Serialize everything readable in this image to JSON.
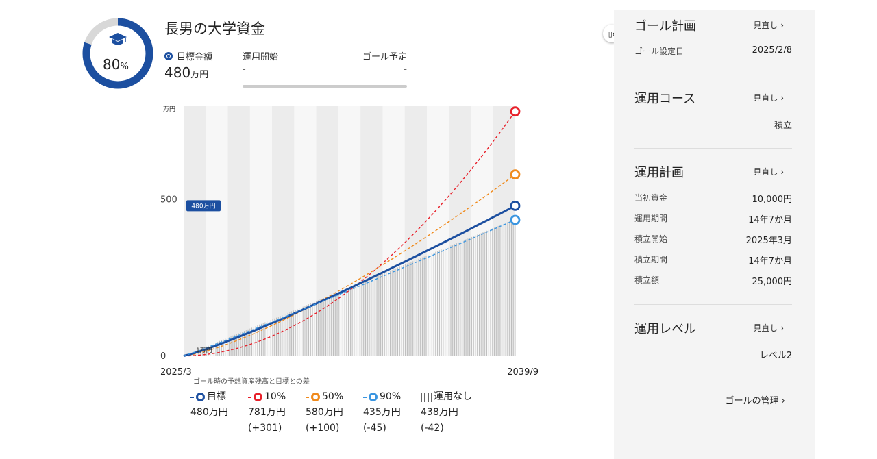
{
  "header": {
    "progress_percent": "80",
    "progress_unit": "%",
    "progress_fraction": 0.8,
    "goal_title": "長男の大学資金",
    "target_label": "目標金額",
    "target_value": "480",
    "target_unit": "万円",
    "start_label": "運用開始",
    "start_value": "-",
    "goal_date_label": "ゴール予定",
    "goal_date_value": "-"
  },
  "chart_data": {
    "type": "line",
    "y_unit": "万円",
    "x_start": "2025/3",
    "x_end": "2039/9",
    "ylim": [
      0,
      800
    ],
    "y_ticks": [
      "0",
      "500"
    ],
    "target_line_label": "480万円",
    "start_label": "1万円",
    "caption": "ゴール時の予想資産残高と目標との差",
    "series": [
      {
        "name": "10%",
        "end_value": 781,
        "diff": "(+301)",
        "color": "#e8202a",
        "style": "dashed",
        "curve": 1.9
      },
      {
        "name": "50%",
        "end_value": 580,
        "diff": "(+100)",
        "color": "#f08a1c",
        "style": "dashed",
        "curve": 1.35
      },
      {
        "name": "目標",
        "end_value": 480,
        "diff": "",
        "color": "#1c4fa0",
        "style": "solid",
        "curve": 1.15
      },
      {
        "name": "90%",
        "end_value": 435,
        "diff": "(-45)",
        "color": "#3a95e0",
        "style": "dashed",
        "curve": 1.05
      }
    ],
    "no_investment": {
      "name": "運用なし",
      "end_value": 438,
      "diff": "(-42)"
    },
    "legend": [
      {
        "key": "target",
        "label": "目標",
        "value": "480万円",
        "diff": "",
        "color": "#1c4fa0"
      },
      {
        "key": "p10",
        "label": "10%",
        "value": "781万円",
        "diff": "(+301)",
        "color": "#e8202a"
      },
      {
        "key": "p50",
        "label": "50%",
        "value": "580万円",
        "diff": "(+100)",
        "color": "#f08a1c"
      },
      {
        "key": "p90",
        "label": "90%",
        "value": "435万円",
        "diff": "(-45)",
        "color": "#3a95e0"
      },
      {
        "key": "none",
        "label": "運用なし",
        "value": "438万円",
        "diff": "(-42)",
        "color": "#666666"
      }
    ]
  },
  "panel": {
    "goal_plan": {
      "title": "ゴール計画",
      "review": "見直し ›",
      "rows": [
        {
          "k": "ゴール設定日",
          "v": "2025/2/8"
        }
      ]
    },
    "course": {
      "title": "運用コース",
      "review": "見直し ›",
      "value": "積立"
    },
    "plan": {
      "title": "運用計画",
      "review": "見直し ›",
      "rows": [
        {
          "k": "当初資金",
          "v": "10,000円"
        },
        {
          "k": "運用期間",
          "v": "14年7か月"
        },
        {
          "k": "積立開始",
          "v": "2025年3月"
        },
        {
          "k": "積立期間",
          "v": "14年7か月"
        },
        {
          "k": "積立額",
          "v": "25,000円"
        }
      ]
    },
    "level": {
      "title": "運用レベル",
      "review": "見直し ›",
      "value": "レベル2"
    },
    "manage_link": "ゴールの管理 ›",
    "expand_icon": "▯›"
  },
  "colors": {
    "brand": "#1c4fa0",
    "donut_track": "#d8d8d8"
  }
}
